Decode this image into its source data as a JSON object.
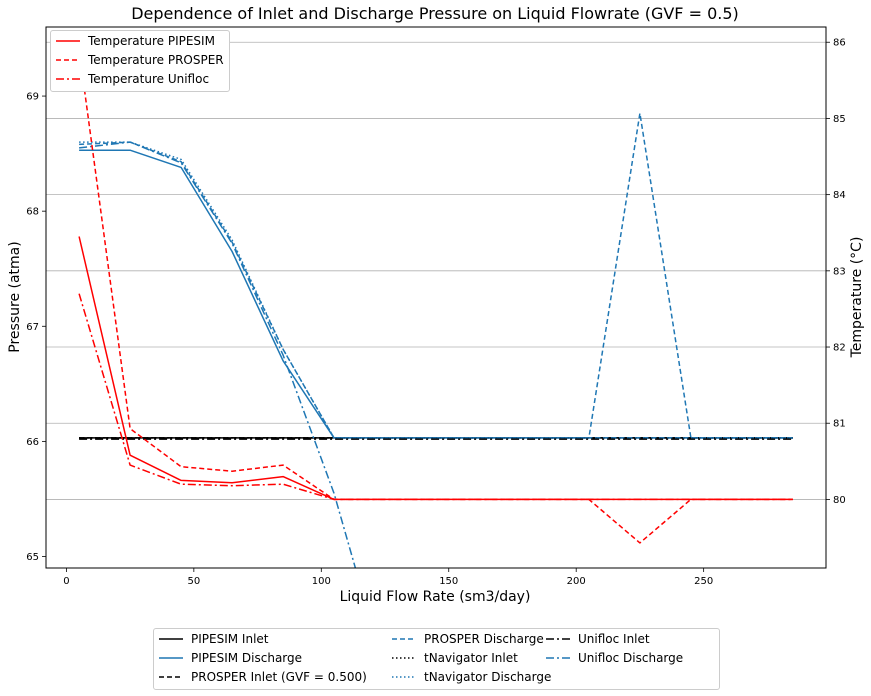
{
  "chart_data": {
    "type": "line",
    "title": "Dependence of Inlet and Discharge Pressure on Liquid Flowrate (GVF = 0.5)",
    "xlabel": "Liquid Flow Rate (sm3/day)",
    "ylabel_left": "Pressure (atma)",
    "ylabel_right": "Temperature (°C)",
    "xlim": [
      -8,
      298
    ],
    "ylim_left": [
      64.9,
      69.6
    ],
    "ylim_right": [
      79.1,
      86.2
    ],
    "xticks": [
      0,
      50,
      100,
      150,
      200,
      250
    ],
    "yticks_left": [
      65,
      66,
      67,
      68,
      69
    ],
    "yticks_right": [
      80,
      81,
      82,
      83,
      84,
      85,
      86
    ],
    "grid": "horizontal, right axis",
    "x": [
      5,
      25,
      45,
      65,
      85,
      105,
      125,
      145,
      165,
      185,
      205,
      225,
      245,
      265,
      285
    ],
    "pressure_series": [
      {
        "name": "PIPESIM Inlet",
        "color": "#000000",
        "style": "solid",
        "values": [
          66.03,
          66.03,
          66.03,
          66.03,
          66.03,
          66.03,
          66.03,
          66.03,
          66.03,
          66.03,
          66.03,
          66.03,
          66.03,
          66.03,
          66.03
        ]
      },
      {
        "name": "PIPESIM Discharge",
        "color": "#1f77b4",
        "style": "solid",
        "values": [
          68.53,
          68.53,
          68.38,
          67.65,
          66.7,
          66.03,
          66.03,
          66.03,
          66.03,
          66.03,
          66.03,
          66.03,
          66.03,
          66.03,
          66.03
        ]
      },
      {
        "name": "PROSPER Inlet (GVF = 0.500)",
        "color": "#000000",
        "style": "dashed",
        "values": [
          66.03,
          66.03,
          66.03,
          66.03,
          66.03,
          66.03,
          66.03,
          66.03,
          66.03,
          66.03,
          66.03,
          66.03,
          66.03,
          66.03,
          66.03
        ]
      },
      {
        "name": "PROSPER Discharge",
        "color": "#1f77b4",
        "style": "dashed",
        "values": [
          68.58,
          68.6,
          68.43,
          67.73,
          66.8,
          66.03,
          66.03,
          66.03,
          66.03,
          66.03,
          66.03,
          68.85,
          66.03,
          66.03,
          66.03
        ]
      },
      {
        "name": "tNavigator Inlet",
        "color": "#000000",
        "style": "dotted",
        "values": [
          66.03,
          66.03,
          66.03,
          66.03,
          66.03,
          66.03,
          66.03,
          66.03,
          66.03,
          66.03,
          66.03,
          66.03,
          66.03,
          66.03,
          66.03
        ]
      },
      {
        "name": "tNavigator Discharge",
        "color": "#1f77b4",
        "style": "dotted",
        "values": [
          68.6,
          68.6,
          68.45,
          67.75,
          66.8,
          66.03,
          66.03,
          66.03,
          66.03,
          66.03,
          66.03,
          66.03,
          66.03,
          66.03,
          66.03
        ]
      },
      {
        "name": "Unifloc Inlet",
        "color": "#000000",
        "style": "dashdot",
        "values": [
          66.02,
          66.02,
          66.02,
          66.02,
          66.02,
          66.02,
          66.02,
          66.02,
          66.02,
          66.02,
          66.02,
          66.02,
          66.02,
          66.02,
          66.02
        ]
      },
      {
        "name": "Unifloc Discharge",
        "color": "#1f77b4",
        "style": "dashdot",
        "values": [
          68.55,
          68.6,
          68.42,
          67.72,
          66.75,
          65.55,
          64.0,
          null,
          null,
          null,
          null,
          null,
          null,
          null,
          null
        ]
      }
    ],
    "temperature_series": [
      {
        "name": "Temperature PIPESIM",
        "color": "#ff0000",
        "style": "solid",
        "values": [
          83.45,
          80.58,
          80.25,
          80.22,
          80.3,
          80.0,
          80.0,
          80.0,
          80.0,
          80.0,
          80.0,
          80.0,
          80.0,
          80.0,
          80.0
        ]
      },
      {
        "name": "Temperature PROSPER",
        "color": "#ff0000",
        "style": "dashed",
        "values": [
          85.9,
          80.93,
          80.43,
          80.37,
          80.45,
          80.0,
          80.0,
          80.0,
          80.0,
          80.0,
          80.0,
          79.43,
          80.0,
          80.0,
          80.0
        ]
      },
      {
        "name": "Temperature Unifloc",
        "color": "#ff0000",
        "style": "dashdot",
        "values": [
          82.7,
          80.45,
          80.2,
          80.18,
          80.2,
          80.0,
          80.0,
          80.0,
          80.0,
          80.0,
          80.0,
          80.0,
          80.0,
          80.0,
          80.0
        ]
      }
    ]
  }
}
